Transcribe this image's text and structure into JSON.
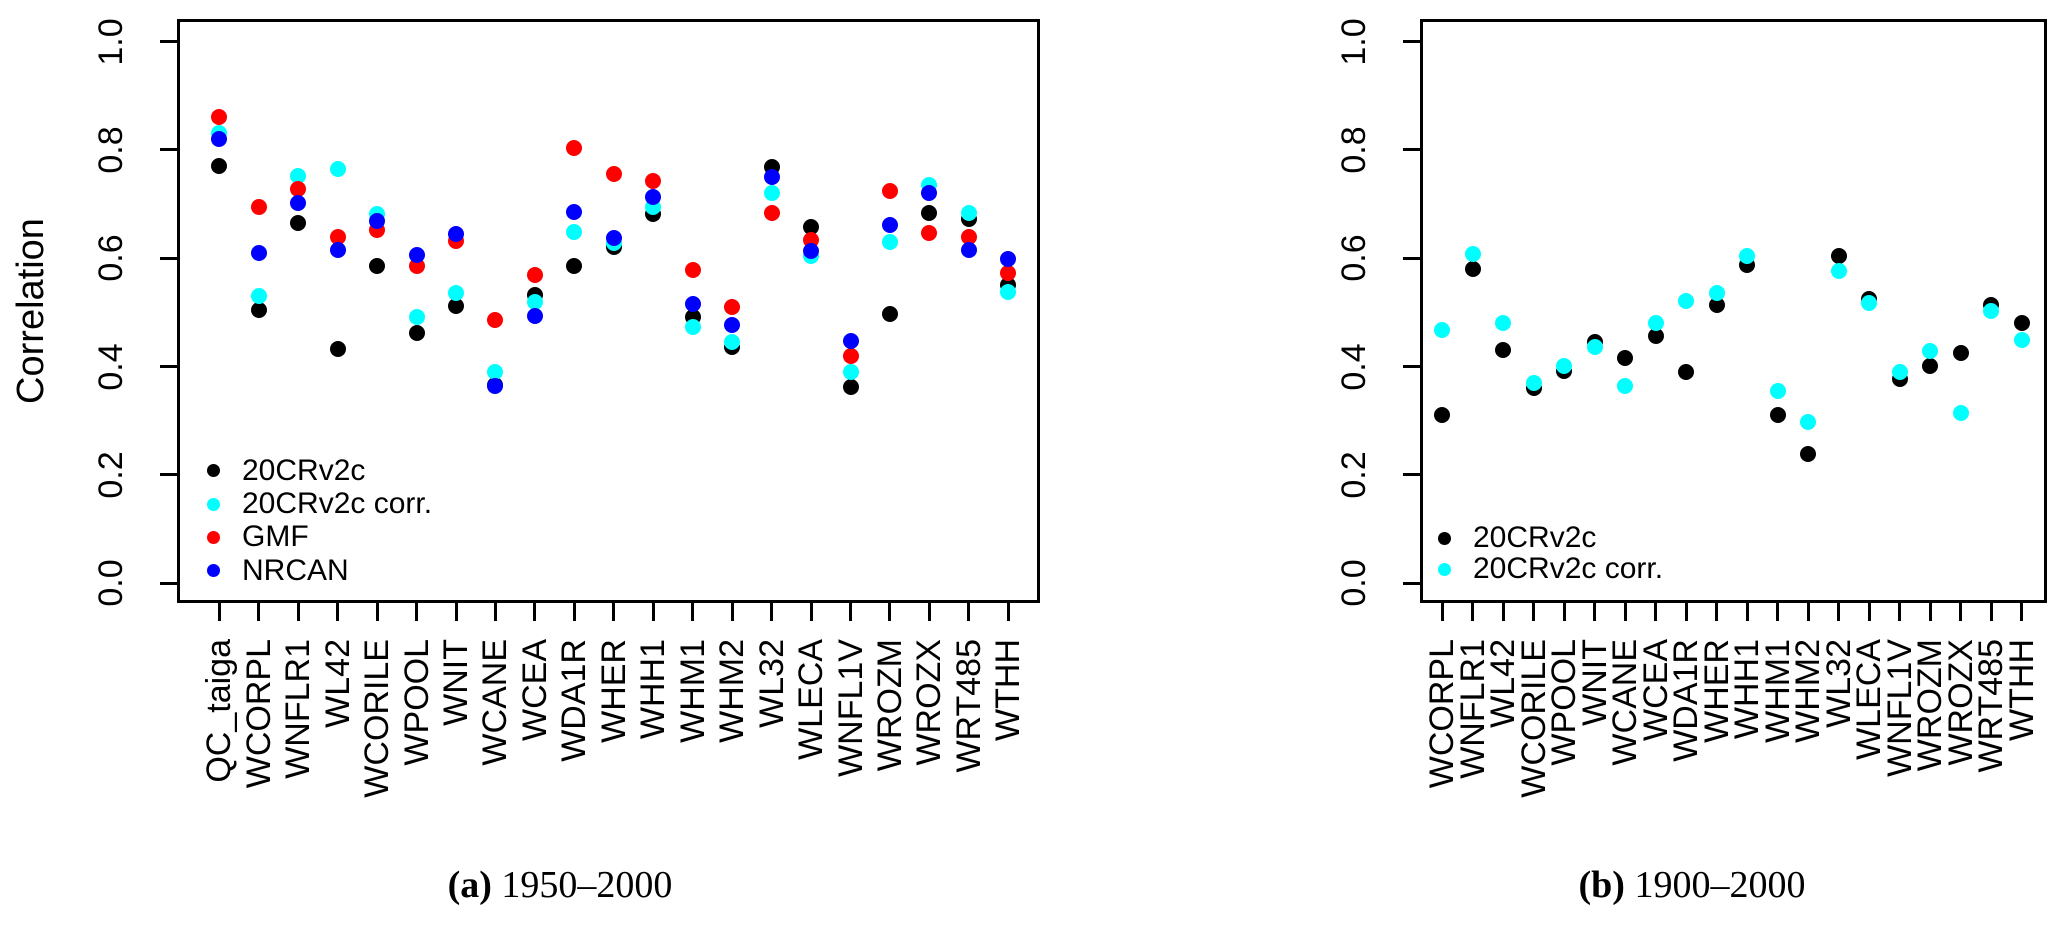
{
  "figure": {
    "background": "#ffffff",
    "colors": {
      "black": "#000000",
      "cyan": "#00FFFF",
      "red": "#FF0000",
      "blue": "#0000FF"
    }
  },
  "chart_data": [
    {
      "type": "scatter",
      "panel": "a",
      "caption_marker": "(a)",
      "caption_text": "1950–2000",
      "ylabel": "Correlation",
      "ylim": [
        0.0,
        1.0
      ],
      "yticks": [
        0.0,
        0.2,
        0.4,
        0.6,
        0.8,
        1.0
      ],
      "ytick_labels": [
        "0.0",
        "0.2",
        "0.4",
        "0.6",
        "0.8",
        "1.0"
      ],
      "grid": false,
      "legend_position": "bottom-left-inside",
      "categories": [
        "QC_taiga",
        "WCORPL",
        "WNFLR1",
        "WL42",
        "WCORILE",
        "WPOOL",
        "WNIT",
        "WCANE",
        "WCEA",
        "WDA1R",
        "WHER",
        "WHH1",
        "WHM1",
        "WHM2",
        "WL32",
        "WLECA",
        "WNFL1V",
        "WROZM",
        "WROZX",
        "WRT485",
        "WTHH"
      ],
      "series": [
        {
          "name": "20CRv2c",
          "color": "#000000",
          "values": [
            0.77,
            0.505,
            0.665,
            0.432,
            0.585,
            0.463,
            0.512,
            0.366,
            0.532,
            0.586,
            0.62,
            0.682,
            0.492,
            0.437,
            0.769,
            0.658,
            0.363,
            0.498,
            0.684,
            0.672,
            0.55
          ]
        },
        {
          "name": "20CRv2c corr.",
          "color": "#00FFFF",
          "values": [
            0.832,
            0.53,
            0.752,
            0.765,
            0.682,
            0.492,
            0.536,
            0.39,
            0.52,
            0.648,
            0.628,
            0.695,
            0.474,
            0.445,
            0.72,
            0.605,
            0.39,
            0.63,
            0.735,
            0.684,
            0.537
          ]
        },
        {
          "name": "GMF",
          "color": "#FF0000",
          "values": [
            0.86,
            0.695,
            0.728,
            0.64,
            0.652,
            0.585,
            0.632,
            0.487,
            0.569,
            0.803,
            0.755,
            0.742,
            0.578,
            0.51,
            0.684,
            0.634,
            0.42,
            0.724,
            0.647,
            0.639,
            0.573
          ]
        },
        {
          "name": "NRCAN",
          "color": "#0000FF",
          "values": [
            0.82,
            0.61,
            0.703,
            0.615,
            0.668,
            0.607,
            0.645,
            0.364,
            0.494,
            0.686,
            0.638,
            0.714,
            0.515,
            0.477,
            0.751,
            0.613,
            0.448,
            0.661,
            0.72,
            0.615,
            0.598
          ]
        }
      ]
    },
    {
      "type": "scatter",
      "panel": "b",
      "caption_marker": "(b)",
      "caption_text": "1900–2000",
      "ylabel": "",
      "ylim": [
        0.0,
        1.0
      ],
      "yticks": [
        0.0,
        0.2,
        0.4,
        0.6,
        0.8,
        1.0
      ],
      "ytick_labels": [
        "0.0",
        "0.2",
        "0.4",
        "0.6",
        "0.8",
        "1.0"
      ],
      "grid": false,
      "legend_position": "bottom-left-inside",
      "categories": [
        "WCORPL",
        "WNFLR1",
        "WL42",
        "WCORILE",
        "WPOOL",
        "WNIT",
        "WCANE",
        "WCEA",
        "WDA1R",
        "WHER",
        "WHH1",
        "WHM1",
        "WHM2",
        "WL32",
        "WLECA",
        "WNFL1V",
        "WROZM",
        "WROZX",
        "WRT485",
        "WTHH"
      ],
      "series": [
        {
          "name": "20CRv2c",
          "color": "#000000",
          "values": [
            0.31,
            0.58,
            0.431,
            0.36,
            0.392,
            0.445,
            0.416,
            0.456,
            0.39,
            0.514,
            0.587,
            0.31,
            0.238,
            0.604,
            0.524,
            0.378,
            0.402,
            0.425,
            0.514,
            0.48
          ]
        },
        {
          "name": "20CRv2c corr.",
          "color": "#00FFFF",
          "values": [
            0.468,
            0.608,
            0.48,
            0.37,
            0.402,
            0.436,
            0.365,
            0.48,
            0.521,
            0.536,
            0.604,
            0.355,
            0.297,
            0.577,
            0.518,
            0.391,
            0.428,
            0.314,
            0.502,
            0.45
          ]
        }
      ]
    }
  ]
}
